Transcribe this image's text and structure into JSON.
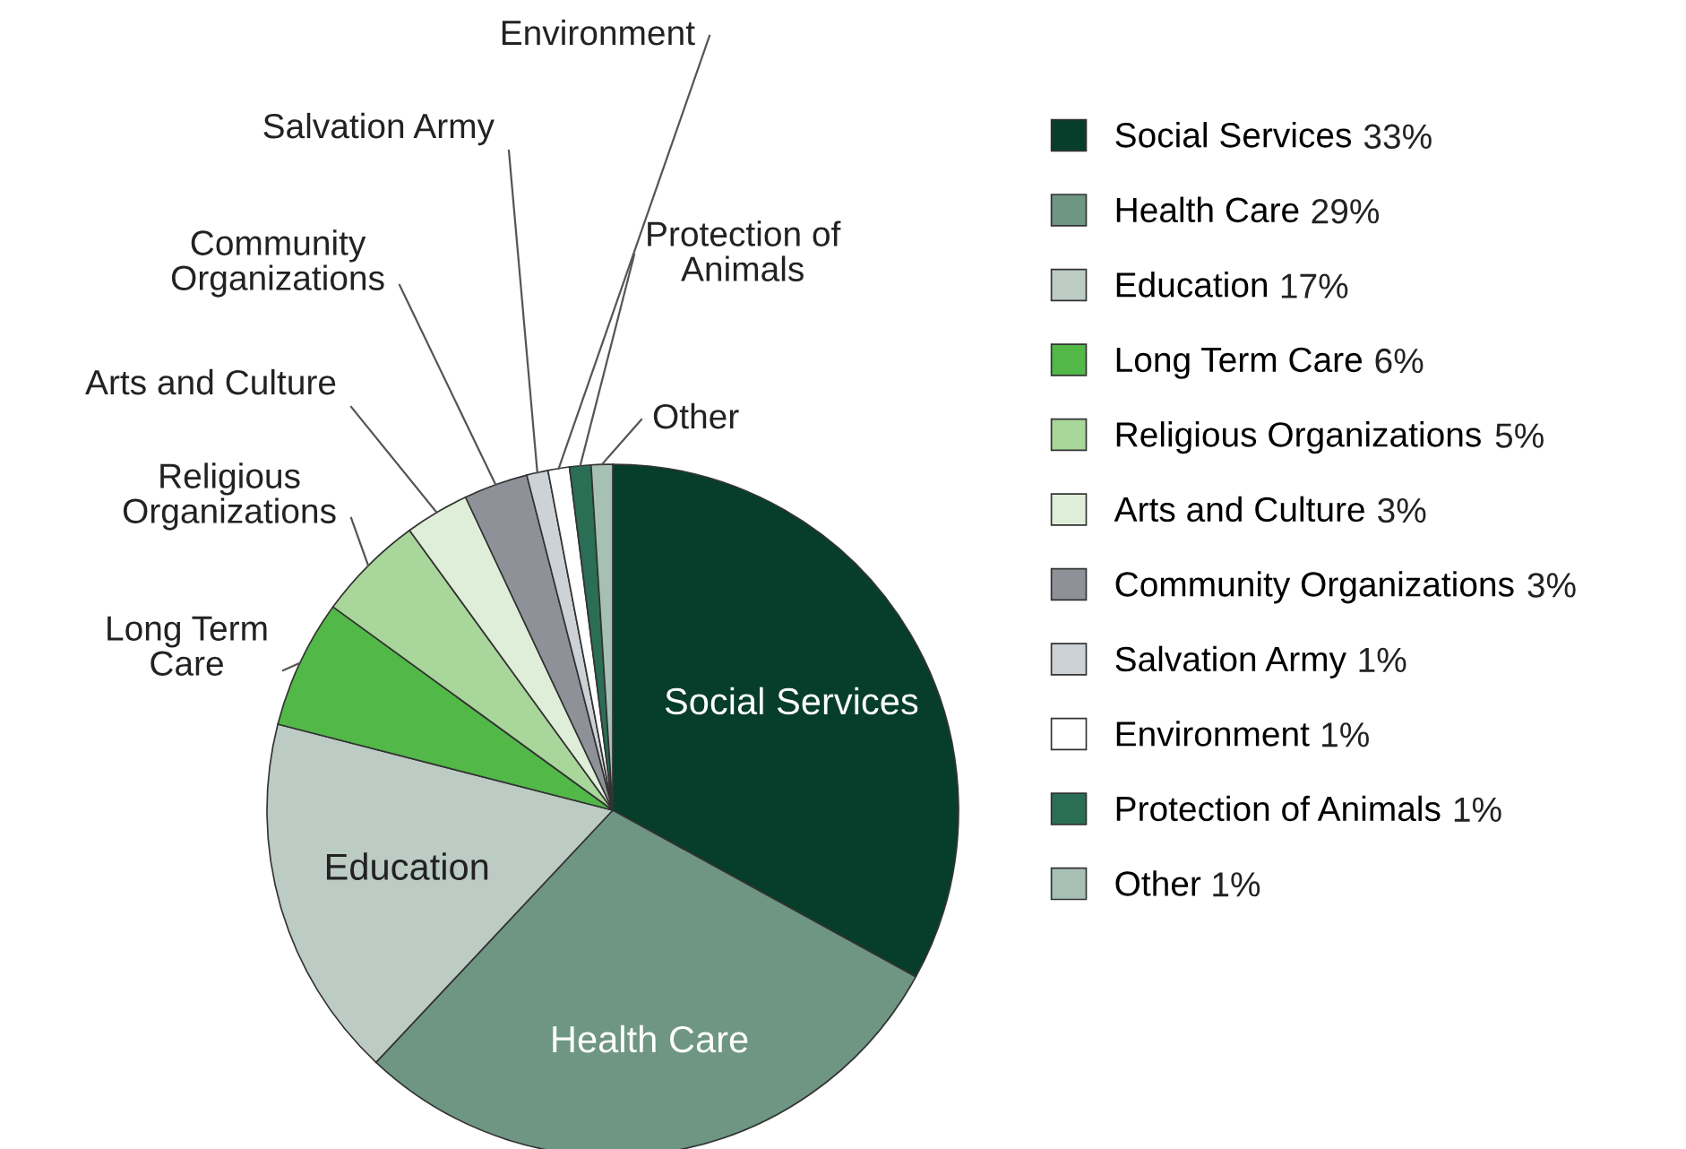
{
  "chart_data": {
    "type": "pie",
    "categories": [
      "Social Services",
      "Health Care",
      "Education",
      "Long Term Care",
      "Religious Organizations",
      "Arts and Culture",
      "Community Organizations",
      "Salvation Army",
      "Environment",
      "Protection of Animals",
      "Other"
    ],
    "values": [
      33,
      29,
      17,
      6,
      5,
      3,
      3,
      1,
      1,
      1,
      1
    ],
    "value_labels": [
      "33%",
      "29%",
      "17%",
      "6%",
      "5%",
      "3%",
      "3%",
      "1%",
      "1%",
      "1%",
      "1%"
    ],
    "colors": [
      "#073d2b",
      "#6e9683",
      "#bccbc4",
      "#52b848",
      "#a9d69a",
      "#dfeed9",
      "#8e9298",
      "#cdd2d6",
      "#ffffff",
      "#2a6e55",
      "#a7c0b4"
    ],
    "legend": "right"
  }
}
